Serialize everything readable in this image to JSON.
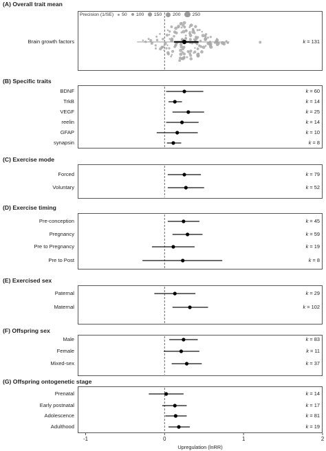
{
  "chart_data": {
    "type": "forest",
    "xlabel": "Upregulation (lnRR)",
    "xlim": [
      -1.1,
      2.0
    ],
    "xticks": [
      -1,
      0,
      1,
      2
    ],
    "reference_line": 0,
    "legend": {
      "title": "Precision (1/SE)",
      "entries": [
        "50",
        "100",
        "150",
        "200",
        "250"
      ]
    },
    "panels": [
      {
        "title": "(A) Overall trait mean",
        "rows": [
          {
            "label": "Brain growth factors",
            "k": "131",
            "est": 0.25,
            "ci": [
              0.12,
              0.43
            ],
            "pi": [
              -0.35,
              0.82
            ]
          }
        ]
      },
      {
        "title": "(B) Specific traits",
        "rows": [
          {
            "label": "BDNF",
            "k": "60",
            "est": 0.25,
            "ci": [
              0.02,
              0.49
            ],
            "pi": [
              0.02,
              0.49
            ]
          },
          {
            "label": "TrkB",
            "k": "14",
            "est": 0.13,
            "ci": [
              0.05,
              0.22
            ],
            "pi": [
              0.05,
              0.22
            ]
          },
          {
            "label": "VEGF",
            "k": "25",
            "est": 0.3,
            "ci": [
              0.1,
              0.5
            ],
            "pi": [
              0.1,
              0.5
            ]
          },
          {
            "label": "reelin",
            "k": "14",
            "est": 0.22,
            "ci": [
              0.02,
              0.43
            ],
            "pi": [
              0.02,
              0.43
            ]
          },
          {
            "label": "GFAP",
            "k": "10",
            "est": 0.16,
            "ci": [
              -0.1,
              0.42
            ],
            "pi": [
              -0.1,
              0.42
            ]
          },
          {
            "label": "synapsin",
            "k": "8",
            "est": 0.11,
            "ci": [
              0.03,
              0.21
            ],
            "pi": [
              0.03,
              0.21
            ]
          }
        ]
      },
      {
        "title": "(C) Exercise mode",
        "rows": [
          {
            "label": "Forced",
            "k": "79",
            "est": 0.25,
            "ci": [
              0.04,
              0.46
            ],
            "pi": [
              0.04,
              0.46
            ]
          },
          {
            "label": "Voluntary",
            "k": "52",
            "est": 0.27,
            "ci": [
              0.04,
              0.5
            ],
            "pi": [
              0.04,
              0.5
            ]
          }
        ]
      },
      {
        "title": "(D) Exercise timing",
        "rows": [
          {
            "label": "Pre-conception",
            "k": "45",
            "est": 0.24,
            "ci": [
              0.04,
              0.44
            ],
            "pi": [
              0.04,
              0.44
            ]
          },
          {
            "label": "Pregnancy",
            "k": "59",
            "est": 0.29,
            "ci": [
              0.1,
              0.48
            ],
            "pi": [
              0.1,
              0.48
            ]
          },
          {
            "label": "Pre to Pregnancy",
            "k": "19",
            "est": 0.11,
            "ci": [
              -0.16,
              0.38
            ],
            "pi": [
              -0.16,
              0.38
            ]
          },
          {
            "label": "Pre to Post",
            "k": "8",
            "est": 0.23,
            "ci": [
              -0.28,
              0.73
            ],
            "pi": [
              -0.28,
              0.73
            ]
          }
        ]
      },
      {
        "title": "(E) Exercised sex",
        "rows": [
          {
            "label": "Paternal",
            "k": "29",
            "est": 0.13,
            "ci": [
              -0.13,
              0.39
            ],
            "pi": [
              -0.13,
              0.39
            ]
          },
          {
            "label": "Maternal",
            "k": "102",
            "est": 0.32,
            "ci": [
              0.1,
              0.55
            ],
            "pi": [
              0.1,
              0.55
            ]
          }
        ]
      },
      {
        "title": "(F) Offspring sex",
        "rows": [
          {
            "label": "Male",
            "k": "83",
            "est": 0.24,
            "ci": [
              0.06,
              0.42
            ],
            "pi": [
              0.06,
              0.42
            ]
          },
          {
            "label": "Female",
            "k": "11",
            "est": 0.21,
            "ci": [
              -0.01,
              0.44
            ],
            "pi": [
              -0.01,
              0.44
            ]
          },
          {
            "label": "Mixed-sex",
            "k": "37",
            "est": 0.28,
            "ci": [
              0.09,
              0.47
            ],
            "pi": [
              0.09,
              0.47
            ]
          }
        ]
      },
      {
        "title": "(G) Offspring ontogenetic stage",
        "rows": [
          {
            "label": "Prenatal",
            "k": "14",
            "est": 0.02,
            "ci": [
              -0.2,
              0.24
            ],
            "pi": [
              -0.2,
              0.24
            ]
          },
          {
            "label": "Early postnatal",
            "k": "17",
            "est": 0.13,
            "ci": [
              -0.03,
              0.28
            ],
            "pi": [
              -0.03,
              0.28
            ]
          },
          {
            "label": "Adolescence",
            "k": "81",
            "est": 0.14,
            "ci": [
              0.01,
              0.28
            ],
            "pi": [
              0.01,
              0.28
            ]
          },
          {
            "label": "Adulthood",
            "k": "19",
            "est": 0.18,
            "ci": [
              0.05,
              0.32
            ],
            "pi": [
              0.05,
              0.32
            ]
          }
        ]
      }
    ]
  }
}
